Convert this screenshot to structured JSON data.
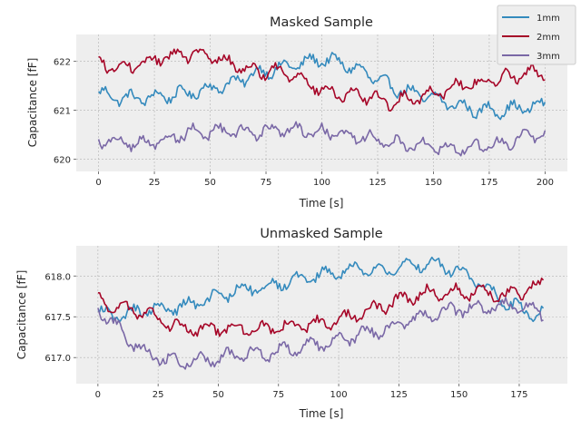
{
  "colors": {
    "background": "#ffffff",
    "axes_face": "#eeeeee",
    "grid": "#b2b2b2",
    "1mm": "#348abd",
    "2mm": "#a60628",
    "3mm": "#7a68a6"
  },
  "legend": {
    "placement": "top-right",
    "entries": [
      "1mm",
      "2mm",
      "3mm"
    ]
  },
  "chart_data": [
    {
      "type": "line",
      "title": "Masked Sample",
      "xlabel": "Time [s]",
      "ylabel": "Capacitance [fF]",
      "xlim": [
        -10,
        210
      ],
      "ylim": [
        619.75,
        622.55
      ],
      "xticks": [
        0,
        25,
        50,
        75,
        100,
        125,
        150,
        175,
        200
      ],
      "xtick_labels": [
        "0",
        "25",
        "50",
        "75",
        "100",
        "125",
        "150",
        "175",
        "200"
      ],
      "yticks": [
        620,
        621,
        622
      ],
      "ytick_labels": [
        "620",
        "621",
        "622"
      ],
      "grid": true,
      "series": [
        {
          "name": "1mm",
          "color": "#348abd",
          "x": [
            0,
            10,
            20,
            30,
            40,
            50,
            60,
            70,
            80,
            90,
            100,
            110,
            120,
            130,
            140,
            150,
            160,
            170,
            180,
            190,
            200
          ],
          "y": [
            621.35,
            621.25,
            621.25,
            621.3,
            621.35,
            621.45,
            621.55,
            621.75,
            621.85,
            621.95,
            622.05,
            621.95,
            621.75,
            621.5,
            621.35,
            621.25,
            621.1,
            621.0,
            621.0,
            621.05,
            621.1
          ]
        },
        {
          "name": "2mm",
          "color": "#a60628",
          "x": [
            0,
            10,
            20,
            30,
            40,
            50,
            60,
            70,
            80,
            90,
            100,
            110,
            120,
            130,
            140,
            150,
            160,
            170,
            180,
            190,
            200
          ],
          "y": [
            621.95,
            621.85,
            621.95,
            622.1,
            622.15,
            622.1,
            621.95,
            621.8,
            621.8,
            621.7,
            621.4,
            621.3,
            621.3,
            621.15,
            621.25,
            621.35,
            621.5,
            621.55,
            621.65,
            621.75,
            621.75
          ]
        },
        {
          "name": "3mm",
          "color": "#7a68a6",
          "x": [
            0,
            10,
            20,
            30,
            40,
            50,
            60,
            70,
            80,
            90,
            100,
            110,
            120,
            130,
            140,
            150,
            160,
            170,
            180,
            190,
            200
          ],
          "y": [
            620.4,
            620.35,
            620.3,
            620.4,
            620.55,
            620.55,
            620.55,
            620.55,
            620.6,
            620.6,
            620.55,
            620.5,
            620.45,
            620.35,
            620.3,
            620.25,
            620.2,
            620.25,
            620.3,
            620.45,
            620.5
          ]
        }
      ]
    },
    {
      "type": "line",
      "title": "Unmasked Sample",
      "xlabel": "Time [s]",
      "ylabel": "Capacitance [fF]",
      "xlim": [
        -9,
        195
      ],
      "ylim": [
        616.68,
        618.37
      ],
      "xticks": [
        0,
        25,
        50,
        75,
        100,
        125,
        150,
        175
      ],
      "xtick_labels": [
        "0",
        "25",
        "50",
        "75",
        "100",
        "125",
        "150",
        "175"
      ],
      "yticks": [
        617.0,
        617.5,
        618.0
      ],
      "ytick_labels": [
        "617.0",
        "617.5",
        "618.0"
      ],
      "grid": true,
      "series": [
        {
          "name": "1mm",
          "color": "#348abd",
          "x": [
            0,
            10,
            20,
            30,
            40,
            50,
            60,
            70,
            80,
            90,
            100,
            110,
            120,
            130,
            140,
            150,
            160,
            170,
            180,
            185
          ],
          "y": [
            617.55,
            617.5,
            617.6,
            617.6,
            617.65,
            617.75,
            617.85,
            617.85,
            617.95,
            618.0,
            618.05,
            618.1,
            618.05,
            618.15,
            618.15,
            618.05,
            617.9,
            617.65,
            617.55,
            617.55
          ]
        },
        {
          "name": "2mm",
          "color": "#a60628",
          "x": [
            0,
            10,
            20,
            30,
            40,
            50,
            60,
            70,
            80,
            90,
            100,
            110,
            120,
            130,
            140,
            150,
            160,
            170,
            180,
            185
          ],
          "y": [
            617.7,
            617.6,
            617.55,
            617.4,
            617.35,
            617.35,
            617.35,
            617.35,
            617.4,
            617.4,
            617.45,
            617.55,
            617.65,
            617.75,
            617.8,
            617.8,
            617.8,
            617.75,
            617.85,
            617.9
          ]
        },
        {
          "name": "3mm",
          "color": "#7a68a6",
          "x": [
            0,
            10,
            20,
            30,
            40,
            50,
            60,
            70,
            80,
            90,
            100,
            110,
            120,
            130,
            140,
            150,
            160,
            170,
            180,
            185
          ],
          "y": [
            617.6,
            617.3,
            617.05,
            616.95,
            616.95,
            617.0,
            617.05,
            617.05,
            617.1,
            617.15,
            617.2,
            617.3,
            617.35,
            617.45,
            617.55,
            617.6,
            617.6,
            617.65,
            617.6,
            617.55
          ]
        }
      ]
    }
  ]
}
